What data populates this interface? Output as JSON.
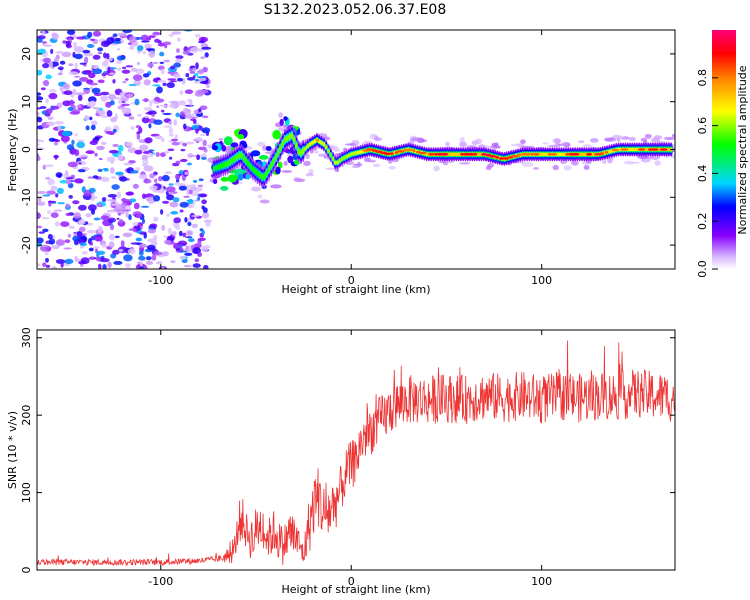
{
  "title": "S132.2023.052.06.37.E08",
  "chart_data": [
    {
      "type": "heatmap",
      "xlabel": "Height of straight line (km)",
      "ylabel": "Frequency (Hz)",
      "xlim": [
        -165,
        170
      ],
      "ylim": [
        -25,
        25
      ],
      "xticks": [
        -100,
        0,
        100
      ],
      "xtick_labels": [
        "-100",
        "0",
        "100"
      ],
      "yticks": [
        -20,
        -10,
        0,
        10,
        20
      ],
      "ytick_labels": [
        "-20",
        "-10",
        "0",
        "10",
        "20"
      ],
      "colorbar": {
        "label": "Normalized spectral amplitude",
        "range": [
          0,
          1
        ],
        "ticks": [
          0.0,
          0.2,
          0.4,
          0.6,
          0.8
        ],
        "tick_labels": [
          "0.0",
          "0.2",
          "0.4",
          "0.6",
          "0.8"
        ]
      },
      "signal_trace": {
        "x": [
          -72,
          -65,
          -58,
          -52,
          -46,
          -40,
          -35,
          -31,
          -27,
          -22,
          -18,
          -14,
          -11,
          -8,
          -5,
          0,
          10,
          20,
          30,
          40,
          50,
          60,
          70,
          80,
          90,
          100,
          110,
          120,
          130,
          140,
          150,
          160,
          168
        ],
        "frequency": [
          -4,
          -3,
          -1,
          -4,
          -6,
          -2,
          2,
          3,
          -1,
          1,
          2,
          1,
          -1,
          -3,
          -2,
          -1,
          0,
          -1,
          0,
          -1,
          -1,
          -1,
          -1,
          -2,
          -1,
          -1,
          -1,
          -1,
          -1,
          0,
          0,
          0,
          0
        ],
        "amplitude": [
          0.3,
          0.45,
          0.5,
          0.35,
          0.45,
          0.5,
          0.55,
          0.6,
          0.55,
          0.7,
          0.8,
          0.7,
          0.55,
          0.7,
          0.6,
          0.65,
          0.85,
          0.9,
          0.8,
          0.85,
          0.95,
          0.9,
          0.95,
          0.9,
          0.8,
          0.85,
          0.8,
          0.95,
          0.85,
          0.8,
          0.85,
          0.9,
          0.95
        ]
      },
      "noise_region_x": [
        -165,
        -75
      ],
      "scale": "linear",
      "grid": false
    },
    {
      "type": "line",
      "xlabel": "Height of straight line (km)",
      "ylabel": "SNR (10 * v/v)",
      "xlim": [
        -165,
        170
      ],
      "ylim": [
        0,
        310
      ],
      "xticks": [
        -100,
        0,
        100
      ],
      "xtick_labels": [
        "-100",
        "0",
        "100"
      ],
      "yticks": [
        0,
        100,
        200,
        300
      ],
      "ytick_labels": [
        "0",
        "100",
        "200",
        "300"
      ],
      "line_color": "#ee3333",
      "series": [
        {
          "x": [
            -165,
            -140,
            -120,
            -100,
            -80,
            -70,
            -62,
            -58,
            -55,
            -52,
            -48,
            -44,
            -40,
            -36,
            -32,
            -28,
            -25,
            -22,
            -18,
            -14,
            -10,
            -6,
            -2,
            2,
            6,
            10,
            14,
            18,
            22,
            26,
            30,
            40,
            50,
            60,
            70,
            80,
            90,
            100,
            110,
            120,
            130,
            140,
            150,
            160,
            170
          ],
          "y": [
            10,
            10,
            10,
            10,
            12,
            14,
            20,
            70,
            50,
            40,
            60,
            40,
            50,
            30,
            50,
            35,
            20,
            60,
            100,
            70,
            80,
            100,
            130,
            140,
            170,
            180,
            190,
            200,
            210,
            215,
            220,
            220,
            222,
            220,
            225,
            222,
            225,
            220,
            225,
            222,
            225,
            225,
            228,
            225,
            222
          ],
          "spread": [
            5,
            5,
            5,
            5,
            5,
            5,
            15,
            40,
            30,
            40,
            40,
            30,
            40,
            30,
            40,
            30,
            20,
            50,
            50,
            50,
            50,
            40,
            40,
            40,
            40,
            40,
            40,
            40,
            40,
            40,
            40,
            40,
            40,
            40,
            40,
            40,
            40,
            40,
            40,
            40,
            40,
            40,
            40,
            40,
            40
          ]
        }
      ],
      "grid": false
    }
  ]
}
